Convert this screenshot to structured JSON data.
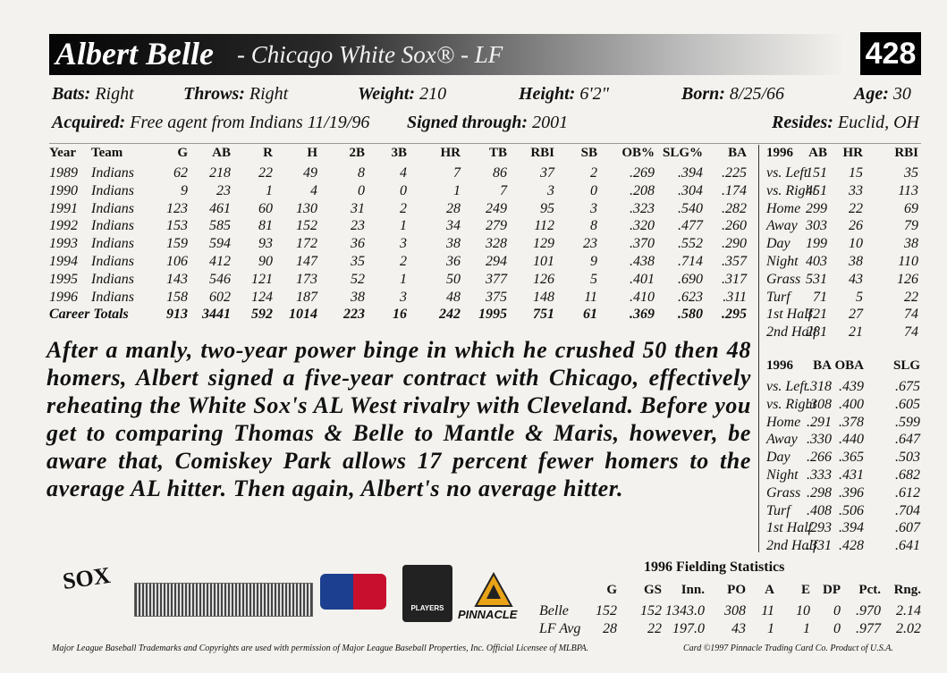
{
  "header": {
    "name": "Albert Belle",
    "subtitle": "- Chicago White Sox® - LF",
    "card_number": "428"
  },
  "bio": [
    {
      "label": "Bats:",
      "value": "Right"
    },
    {
      "label": "Throws:",
      "value": "Right"
    },
    {
      "label": "Weight:",
      "value": "210"
    },
    {
      "label": "Height:",
      "value": "6'2\""
    },
    {
      "label": "Born:",
      "value": "8/25/66"
    },
    {
      "label": "Age:",
      "value": "30"
    },
    {
      "label": "Acquired:",
      "value": "Free agent from Indians 11/19/96"
    },
    {
      "label": "Signed through:",
      "value": "2001"
    },
    {
      "label": "Resides:",
      "value": "Euclid, OH"
    }
  ],
  "stats": {
    "header": [
      "Year",
      "Team",
      "G",
      "AB",
      "R",
      "H",
      "2B",
      "3B",
      "HR",
      "TB",
      "RBI",
      "SB",
      "OB%",
      "SLG%",
      "BA"
    ],
    "rows": [
      [
        "1989",
        "Indians",
        "62",
        "218",
        "22",
        "49",
        "8",
        "4",
        "7",
        "86",
        "37",
        "2",
        ".269",
        ".394",
        ".225"
      ],
      [
        "1990",
        "Indians",
        "9",
        "23",
        "1",
        "4",
        "0",
        "0",
        "1",
        "7",
        "3",
        "0",
        ".208",
        ".304",
        ".174"
      ],
      [
        "1991",
        "Indians",
        "123",
        "461",
        "60",
        "130",
        "31",
        "2",
        "28",
        "249",
        "95",
        "3",
        ".323",
        ".540",
        ".282"
      ],
      [
        "1992",
        "Indians",
        "153",
        "585",
        "81",
        "152",
        "23",
        "1",
        "34",
        "279",
        "112",
        "8",
        ".320",
        ".477",
        ".260"
      ],
      [
        "1993",
        "Indians",
        "159",
        "594",
        "93",
        "172",
        "36",
        "3",
        "38",
        "328",
        "129",
        "23",
        ".370",
        ".552",
        ".290"
      ],
      [
        "1994",
        "Indians",
        "106",
        "412",
        "90",
        "147",
        "35",
        "2",
        "36",
        "294",
        "101",
        "9",
        ".438",
        ".714",
        ".357"
      ],
      [
        "1995",
        "Indians",
        "143",
        "546",
        "121",
        "173",
        "52",
        "1",
        "50",
        "377",
        "126",
        "5",
        ".401",
        ".690",
        ".317"
      ],
      [
        "1996",
        "Indians",
        "158",
        "602",
        "124",
        "187",
        "38",
        "3",
        "48",
        "375",
        "148",
        "11",
        ".410",
        ".623",
        ".311"
      ],
      [
        "Career Totals",
        "913",
        "3441",
        "592",
        "1014",
        "223",
        "16",
        "242",
        "1995",
        "751",
        "61",
        ".369",
        ".580",
        ".295"
      ]
    ]
  },
  "splits_counting": {
    "header": [
      "1996",
      "AB",
      "HR",
      "RBI"
    ],
    "rows": [
      [
        "vs. Left",
        "151",
        "15",
        "35"
      ],
      [
        "vs. Right",
        "451",
        "33",
        "113"
      ],
      [
        "Home",
        "299",
        "22",
        "69"
      ],
      [
        "Away",
        "303",
        "26",
        "79"
      ],
      [
        "Day",
        "199",
        "10",
        "38"
      ],
      [
        "Night",
        "403",
        "38",
        "110"
      ],
      [
        "Grass",
        "531",
        "43",
        "126"
      ],
      [
        "Turf",
        "71",
        "5",
        "22"
      ],
      [
        "1st Half",
        "321",
        "27",
        "74"
      ],
      [
        "2nd Half",
        "281",
        "21",
        "74"
      ]
    ]
  },
  "splits_rates": {
    "header": [
      "1996",
      "BA",
      "OBA",
      "SLG"
    ],
    "rows": [
      [
        "vs. Left",
        ".318",
        ".439",
        ".675"
      ],
      [
        "vs. Right",
        ".308",
        ".400",
        ".605"
      ],
      [
        "Home",
        ".291",
        ".378",
        ".599"
      ],
      [
        "Away",
        ".330",
        ".440",
        ".647"
      ],
      [
        "Day",
        ".266",
        ".365",
        ".503"
      ],
      [
        "Night",
        ".333",
        ".431",
        ".682"
      ],
      [
        "Grass",
        ".298",
        ".396",
        ".612"
      ],
      [
        "Turf",
        ".408",
        ".506",
        ".704"
      ],
      [
        "1st Half",
        ".293",
        ".394",
        ".607"
      ],
      [
        "2nd Half",
        ".331",
        ".428",
        ".641"
      ]
    ]
  },
  "bio_text": "After a manly, two-year power binge in which he crushed 50 then 48 homers, Albert signed a five-year contract with Chicago, effectively reheating the White Sox's AL West rivalry with Cleveland. Before you get to comparing Thomas & Belle to Mantle & Maris, however, be aware that, Comiskey Park allows 17 percent fewer homers to the average AL hitter. Then again, Albert's no average hitter.",
  "fielding": {
    "title": "1996 Fielding Statistics",
    "header": [
      "G",
      "GS",
      "Inn.",
      "PO",
      "A",
      "E",
      "DP",
      "Pct.",
      "Rng."
    ],
    "rows": [
      [
        "Belle",
        "152",
        "152",
        "1343.0",
        "308",
        "11",
        "10",
        "0",
        ".970",
        "2.14"
      ],
      [
        "LF Avg",
        "28",
        "22",
        "197.0",
        "43",
        "1",
        "1",
        "0",
        ".977",
        "2.02"
      ]
    ]
  },
  "logos": {
    "team": "SOX",
    "players": "PLAYERS",
    "pinnacle": "PINNACLE"
  },
  "footer": {
    "legal": "Major League Baseball Trademarks and Copyrights are used with permission of Major League Baseball Properties, Inc. Official Licensee of MLBPA.",
    "copyright": "Card ©1997 Pinnacle Trading Card Co. Product of U.S.A."
  }
}
